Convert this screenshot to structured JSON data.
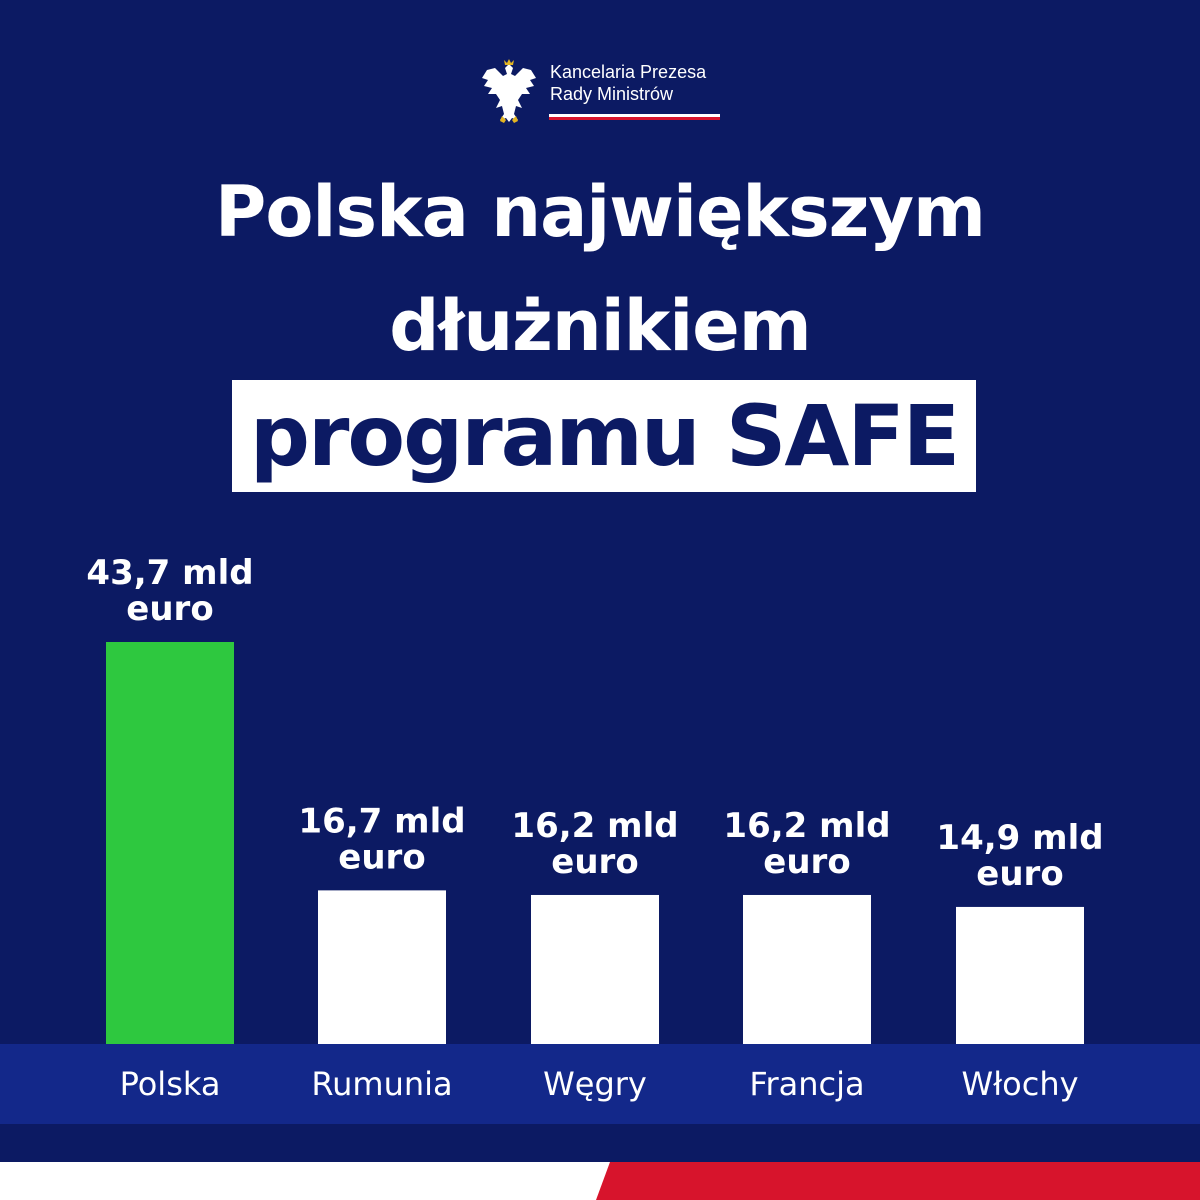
{
  "header": {
    "org_line1": "Kancelaria Prezesa",
    "org_line2": "Rady Ministrów",
    "emblem_icon": "white-eagle-emblem-icon"
  },
  "title": {
    "line1": "Polska największym",
    "line2": "dłużnikiem",
    "line3": "programu SAFE"
  },
  "colors": {
    "background": "#0c1a63",
    "category_band": "#13288a",
    "highlight_bar": "#2ec83f",
    "other_bar": "#ffffff",
    "flag_red": "#d7142c"
  },
  "chart_data": {
    "type": "bar",
    "categories": [
      "Polska",
      "Rumunia",
      "Węgry",
      "Francja",
      "Włochy"
    ],
    "values": [
      43.7,
      16.7,
      16.2,
      16.2,
      14.9
    ],
    "value_labels": [
      [
        "43,7 mld",
        "euro"
      ],
      [
        "16,7 mld",
        "euro"
      ],
      [
        "16,2 mld",
        "euro"
      ],
      [
        "16,2 mld",
        "euro"
      ],
      [
        "14,9 mld",
        "euro"
      ]
    ],
    "title": "",
    "xlabel": "",
    "ylabel": "",
    "highlight_index": 0,
    "grid": false
  }
}
